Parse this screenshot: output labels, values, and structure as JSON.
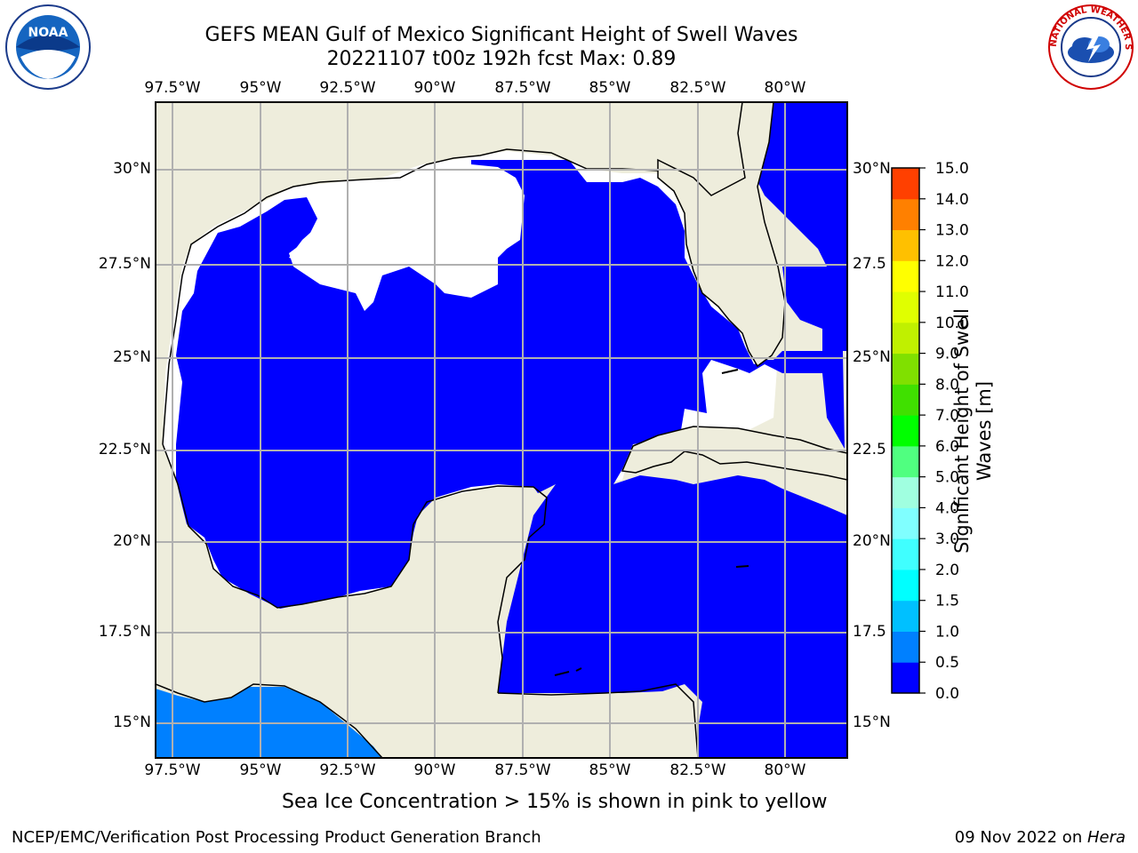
{
  "title": {
    "line1": "GEFS MEAN Gulf of Mexico Significant Height of Swell Waves",
    "line2": "20221107 t00z 192h fcst   Max: 0.89"
  },
  "map": {
    "lon_labels": [
      "97.5°W",
      "95°W",
      "92.5°W",
      "90°W",
      "87.5°W",
      "85°W",
      "82.5°W",
      "80°W"
    ],
    "lat_labels_left": [
      "30°N",
      "27.5°N",
      "25°N",
      "22.5°N",
      "20°N",
      "17.5°N",
      "15°N"
    ],
    "lat_labels_right": [
      "30°N",
      "27.5",
      "25°N",
      "22.5",
      "20°N",
      "17.5",
      "15°N"
    ],
    "colors": {
      "land": "#eeeddc",
      "water_low": "#0000ff",
      "water_mid": "#0080ff",
      "grid": "#b0b0b0"
    }
  },
  "colorbar": {
    "label": "Significant Height of Swell Waves [m]",
    "ticks": [
      "0.0",
      "0.5",
      "1.0",
      "1.5",
      "2.0",
      "3.0",
      "4.0",
      "5.0",
      "6.0",
      "7.0",
      "8.0",
      "9.0",
      "10.0",
      "11.0",
      "12.0",
      "13.0",
      "14.0",
      "15.0"
    ],
    "colors": [
      "#0000ff",
      "#0080ff",
      "#00c0ff",
      "#00ffff",
      "#40ffff",
      "#80ffff",
      "#a0ffe0",
      "#50ff80",
      "#00ff00",
      "#40e000",
      "#80e000",
      "#c0f000",
      "#e0ff00",
      "#ffff00",
      "#ffc000",
      "#ff8000",
      "#ff4000",
      "#ff0000"
    ]
  },
  "caption": "Sea Ice Concentration > 15% is shown in pink to yellow",
  "footer": {
    "left": "NCEP/EMC/Verification Post Processing Product Generation Branch",
    "right_date": "09 Nov 2022 on ",
    "right_host": "Hera"
  },
  "logos": {
    "noaa_text": "NOAA",
    "nws_text": "NATIONAL WEATHER SERVICE"
  }
}
